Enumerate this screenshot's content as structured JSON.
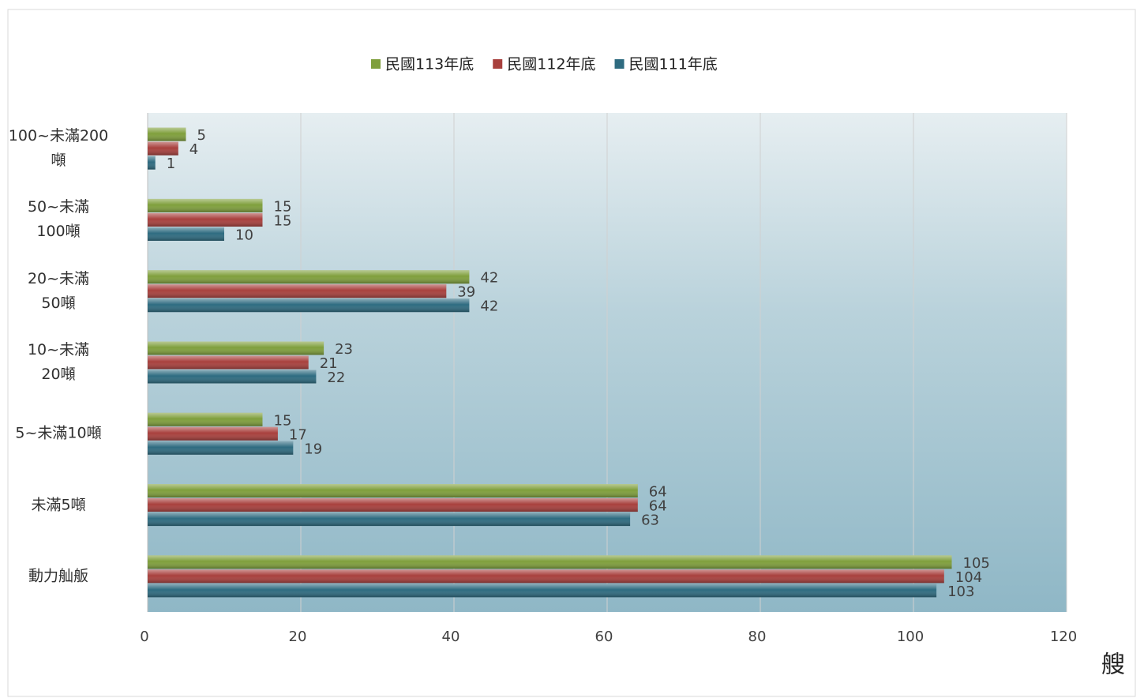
{
  "chart_data": {
    "type": "bar",
    "orientation": "horizontal",
    "categories": [
      "100~未滿200\n噸",
      "50~未滿\n100噸",
      "20~未滿\n50噸",
      "10~未滿\n20噸",
      "5~未滿10噸",
      "未滿5噸",
      "動力舢舨"
    ],
    "series": [
      {
        "name": "民國113年底",
        "color": "#7f9f3c",
        "values": [
          5,
          15,
          42,
          23,
          15,
          64,
          105
        ]
      },
      {
        "name": "民國112年底",
        "color": "#a8403d",
        "values": [
          4,
          15,
          39,
          21,
          17,
          64,
          104
        ]
      },
      {
        "name": "民國111年底",
        "color": "#2e6b80",
        "values": [
          1,
          10,
          42,
          22,
          19,
          63,
          103
        ]
      }
    ],
    "x_label": "艘",
    "xlim": [
      0,
      120
    ],
    "xticks": [
      0,
      20,
      40,
      60,
      80,
      100,
      120
    ],
    "grid": true,
    "legend": "top"
  }
}
